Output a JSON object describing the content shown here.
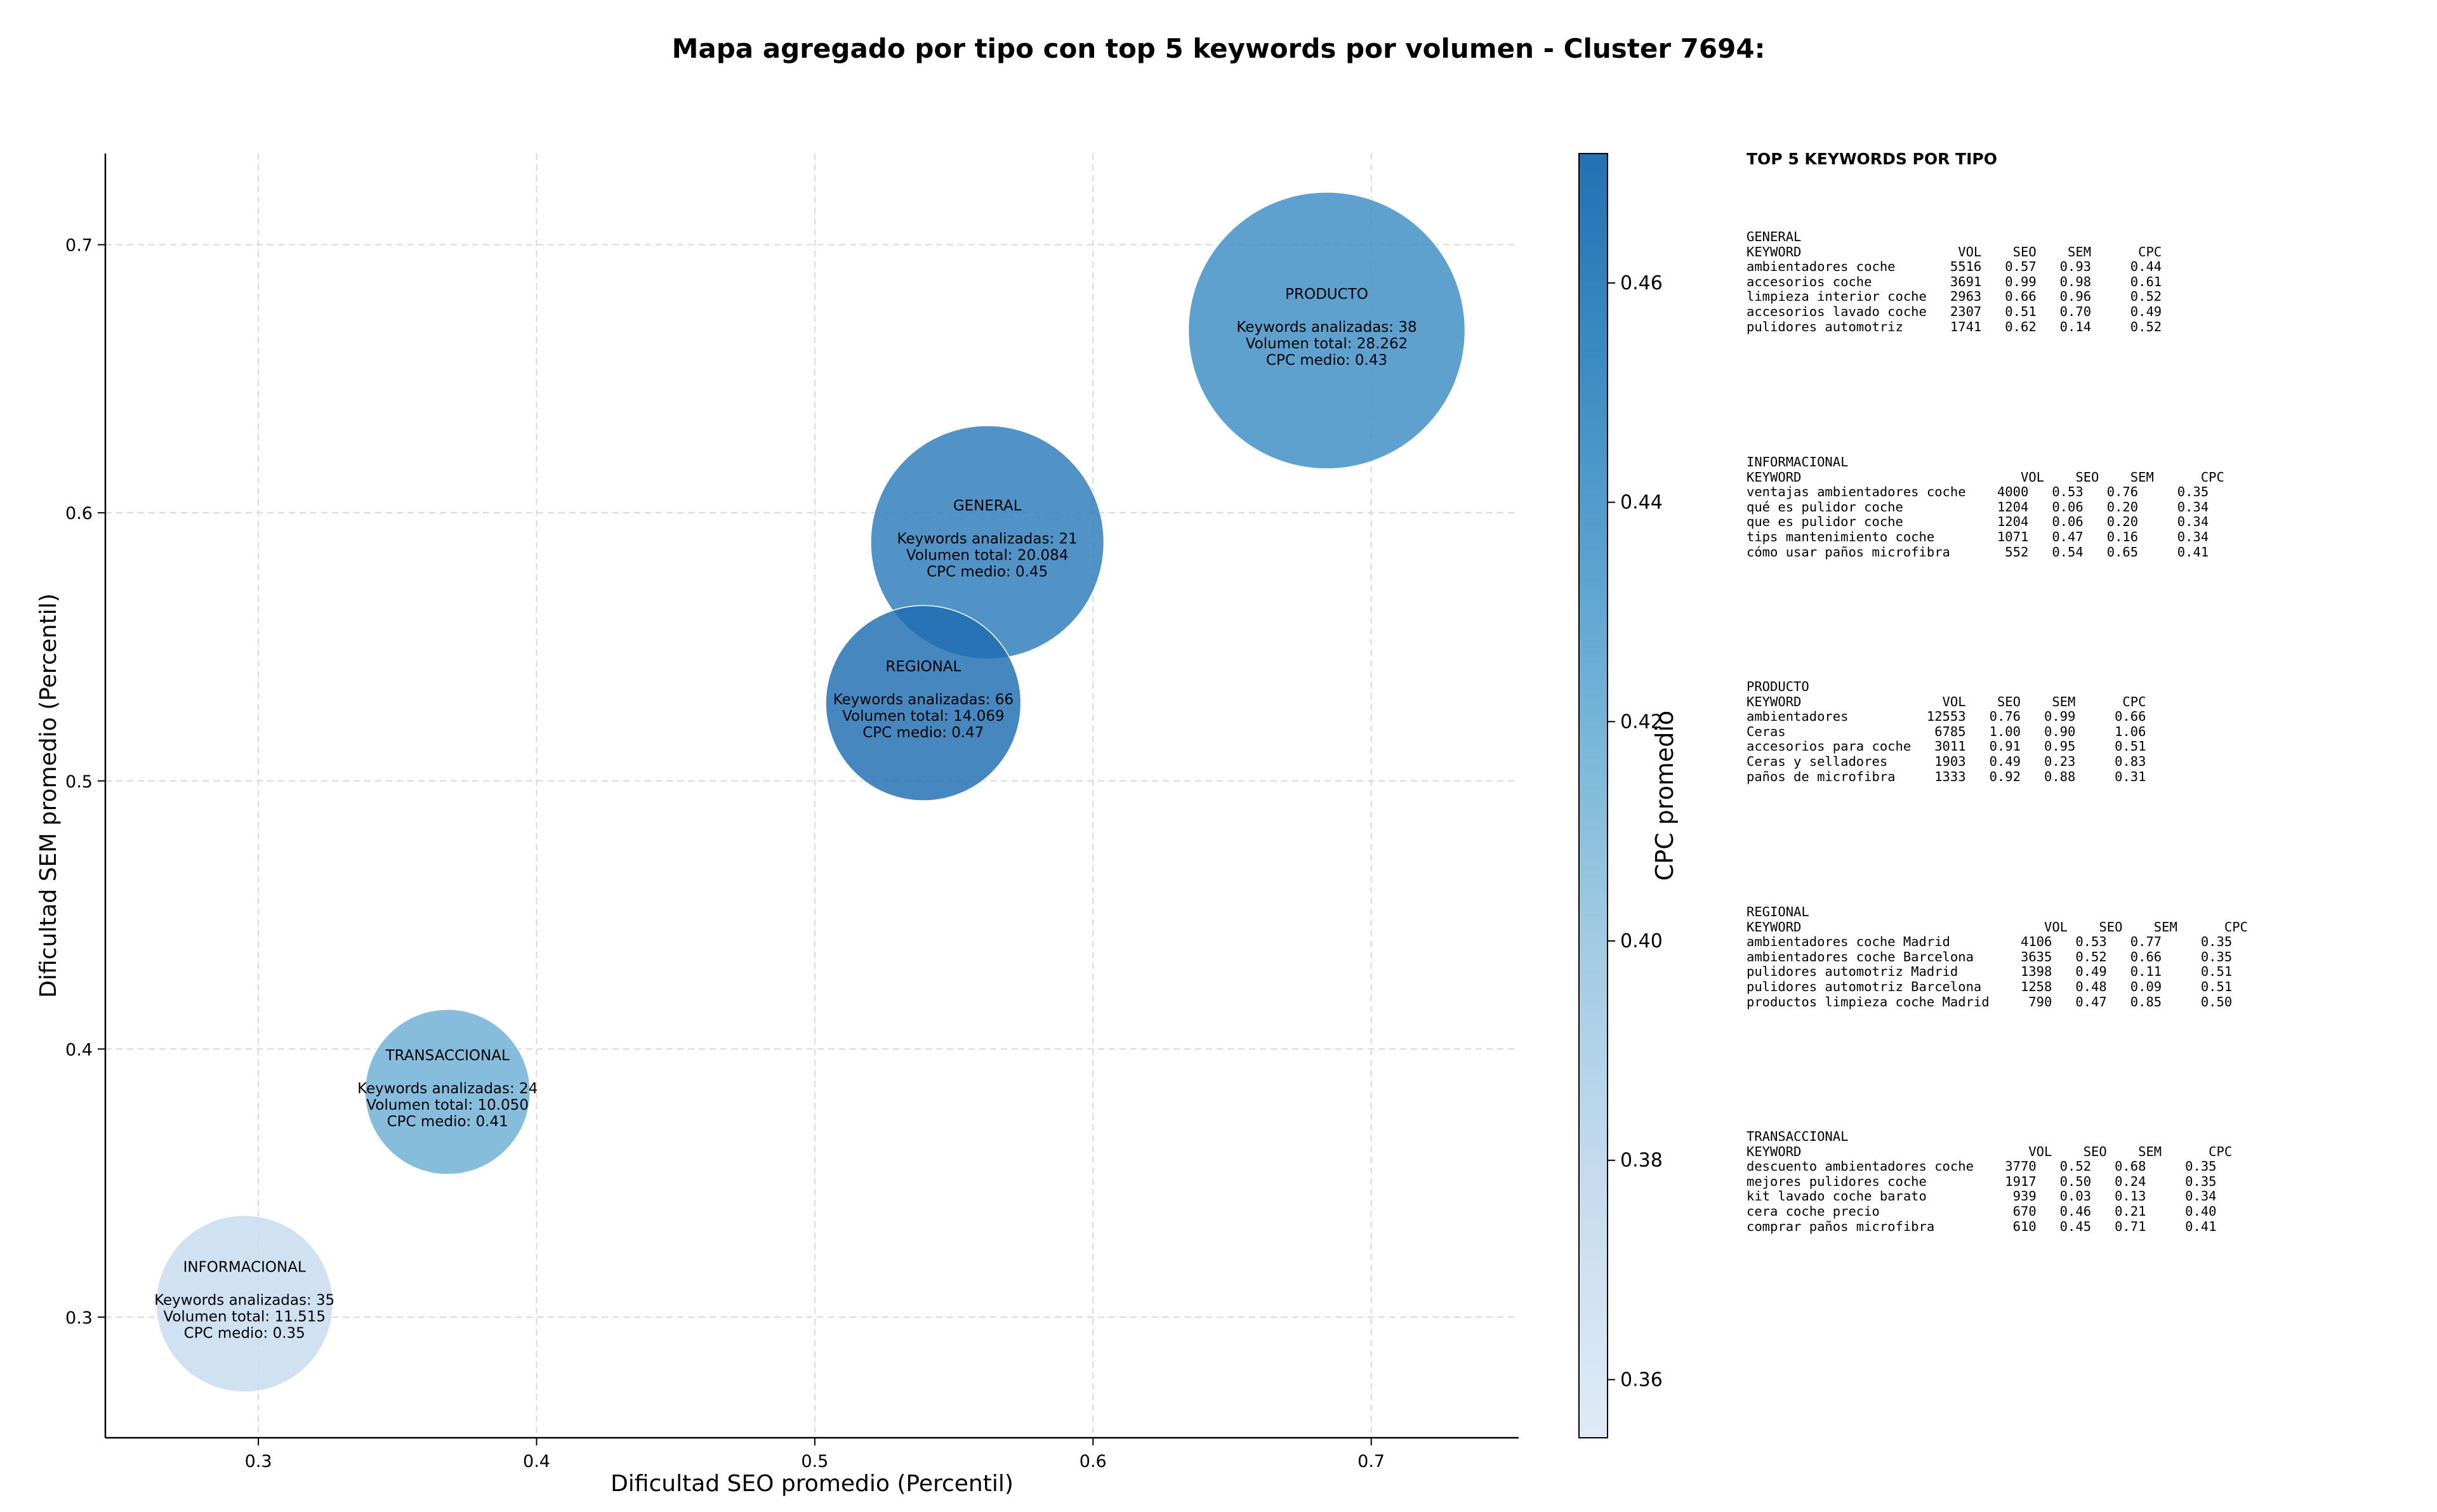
{
  "title": "Mapa agregado por tipo con top 5 keywords por volumen - Cluster 7694:",
  "chart_data": {
    "type": "scatter",
    "subtype": "bubble",
    "xlabel": "Dificultad SEO promedio (Percentil)",
    "ylabel": "Dificultad SEM promedio (Percentil)",
    "xlim": [
      0.245,
      0.753
    ],
    "ylim": [
      0.255,
      0.734
    ],
    "xticks": [
      0.3,
      0.4,
      0.5,
      0.6,
      0.7
    ],
    "yticks": [
      0.3,
      0.4,
      0.5,
      0.6,
      0.7
    ],
    "grid": true,
    "colorbar": {
      "label": "CPC promedio",
      "range": [
        0.3547,
        0.4718
      ],
      "ticks": [
        0.36,
        0.38,
        0.4,
        0.42,
        0.44,
        0.46
      ],
      "colormap": [
        "#deebf7",
        "#c6dbef",
        "#9ecae1",
        "#6baed6",
        "#4292c6",
        "#2171b5"
      ]
    },
    "points": [
      {
        "name": "INFORMACIONAL",
        "x": 0.295,
        "y": 0.305,
        "volume": 11515,
        "cpc": 0.35,
        "color": "#c6dbef",
        "lines": [
          "INFORMACIONAL",
          "",
          "Keywords analizadas: 35",
          "Volumen total: 11.515",
          "CPC medio: 0.35"
        ]
      },
      {
        "name": "TRANSACCIONAL",
        "x": 0.368,
        "y": 0.384,
        "volume": 10050,
        "cpc": 0.41,
        "color": "#6baed6",
        "lines": [
          "TRANSACCIONAL",
          "",
          "Keywords analizadas: 24",
          "Volumen total: 10.050",
          "CPC medio: 0.41"
        ]
      },
      {
        "name": "GENERAL",
        "x": 0.562,
        "y": 0.589,
        "volume": 20084,
        "cpc": 0.45,
        "color": "#2b7bba",
        "lines": [
          "GENERAL",
          "",
          "Keywords analizadas: 21",
          "Volumen total: 20.084",
          "CPC medio: 0.45"
        ]
      },
      {
        "name": "REGIONAL",
        "x": 0.539,
        "y": 0.529,
        "volume": 14069,
        "cpc": 0.47,
        "color": "#1f6db2",
        "lines": [
          "REGIONAL",
          "",
          "Keywords analizadas: 66",
          "Volumen total: 14.069",
          "CPC medio: 0.47"
        ]
      },
      {
        "name": "PRODUCTO",
        "x": 0.684,
        "y": 0.668,
        "volume": 28262,
        "cpc": 0.43,
        "color": "#3b8cc5",
        "lines": [
          "PRODUCTO",
          "",
          "Keywords analizadas: 38",
          "Volumen total: 28.262",
          "CPC medio: 0.43"
        ]
      }
    ]
  },
  "side_panel": {
    "title": "TOP 5 KEYWORDS POR TIPO",
    "blocks": [
      {
        "text": "GENERAL\nKEYWORD                    VOL    SEO    SEM      CPC\nambientadores coche       5516   0.57   0.93     0.44\naccesorios coche          3691   0.99   0.98     0.61\nlimpieza interior coche   2963   0.66   0.96     0.52\naccesorios lavado coche   2307   0.51   0.70     0.49\npulidores automotriz      1741   0.62   0.14     0.52"
      },
      {
        "text": "INFORMACIONAL\nKEYWORD                            VOL    SEO    SEM      CPC\nventajas ambientadores coche    4000   0.53   0.76     0.35\nqué es pulidor coche            1204   0.06   0.20     0.34\nque es pulidor coche            1204   0.06   0.20     0.34\ntips mantenimiento coche        1071   0.47   0.16     0.34\ncómo usar paños microfibra       552   0.54   0.65     0.41"
      },
      {
        "text": "PRODUCTO\nKEYWORD                  VOL    SEO    SEM      CPC\nambientadores          12553   0.76   0.99     0.66\nCeras                   6785   1.00   0.90     1.06\naccesorios para coche   3011   0.91   0.95     0.51\nCeras y selladores      1903   0.49   0.23     0.83\npaños de microfibra     1333   0.92   0.88     0.31"
      },
      {
        "text": "REGIONAL\nKEYWORD                               VOL    SEO    SEM      CPC\nambientadores coche Madrid         4106   0.53   0.77     0.35\nambientadores coche Barcelona      3635   0.52   0.66     0.35\npulidores automotriz Madrid        1398   0.49   0.11     0.51\npulidores automotriz Barcelona     1258   0.48   0.09     0.51\nproductos limpieza coche Madrid     790   0.47   0.85     0.50"
      },
      {
        "text": "TRANSACCIONAL\nKEYWORD                             VOL    SEO    SEM      CPC\ndescuento ambientadores coche    3770   0.52   0.68     0.35\nmejores pulidores coche          1917   0.50   0.24     0.35\nkit lavado coche barato           939   0.03   0.13     0.34\ncera coche precio                 670   0.46   0.21     0.40\ncomprar paños microfibra          610   0.45   0.71     0.41"
      }
    ]
  }
}
